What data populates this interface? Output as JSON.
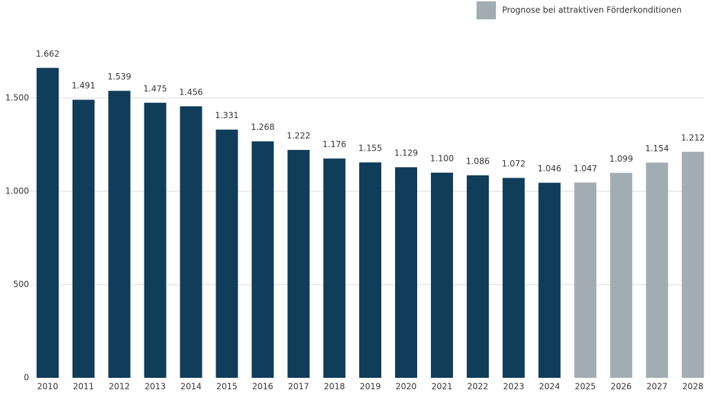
{
  "chart_data": {
    "type": "bar",
    "categories": [
      "2010",
      "2011",
      "2012",
      "2013",
      "2014",
      "2015",
      "2016",
      "2017",
      "2018",
      "2019",
      "2020",
      "2021",
      "2022",
      "2023",
      "2024",
      "2025",
      "2026",
      "2027",
      "2028"
    ],
    "series": [
      {
        "color": "#0f3d5a",
        "values": [
          1662,
          1491,
          1539,
          1475,
          1456,
          1331,
          1268,
          1222,
          1176,
          1155,
          1129,
          1100,
          1086,
          1072,
          1046,
          null,
          null,
          null,
          null
        ],
        "value_labels": [
          "1.662",
          "1.491",
          "1.539",
          "1.475",
          "1.456",
          "1.331",
          "1.268",
          "1.222",
          "1.176",
          "1.155",
          "1.129",
          "1.100",
          "1.086",
          "1.072",
          "1.046",
          null,
          null,
          null,
          null
        ]
      },
      {
        "name": "Prognose bei attraktiven Förderkonditionen",
        "color": "#a1adb2",
        "values": [
          null,
          null,
          null,
          null,
          null,
          null,
          null,
          null,
          null,
          null,
          null,
          null,
          null,
          null,
          null,
          1047,
          1099,
          1154,
          1212
        ],
        "value_labels": [
          null,
          null,
          null,
          null,
          null,
          null,
          null,
          null,
          null,
          null,
          null,
          null,
          null,
          null,
          null,
          "1.047",
          "1.099",
          "1.154",
          "1.212"
        ]
      }
    ],
    "ylim": [
      0,
      2000
    ],
    "yticks": [
      0,
      500,
      {
        "value": 1000,
        "label": "1.000"
      },
      {
        "value": 1500,
        "label": "1.500"
      }
    ],
    "grid": true
  }
}
